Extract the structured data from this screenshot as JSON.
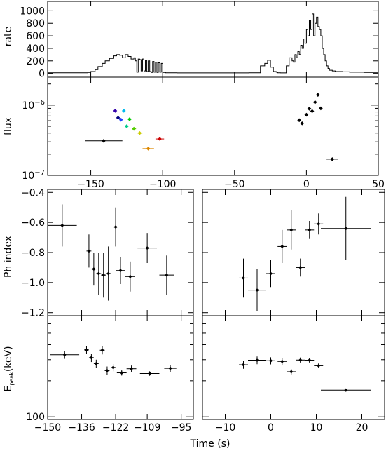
{
  "xlabel": "Time (s)",
  "chart_data": [
    {
      "panel": "rate",
      "type": "line",
      "ylabel": "rate",
      "xlim": [
        -180,
        50
      ],
      "ylim": [
        -60,
        1150
      ],
      "yticks": [
        0,
        200,
        400,
        600,
        800,
        1000
      ],
      "series_x": [
        -180,
        -160,
        -152,
        -150,
        -147,
        -145,
        -142,
        -140,
        -137,
        -134,
        -132,
        -130,
        -128,
        -126,
        -124,
        -122,
        -120,
        -119,
        -118,
        -117,
        -116,
        -115,
        -114,
        -113,
        -112,
        -111,
        -110,
        -109,
        -108,
        -107,
        -106,
        -105,
        -104,
        -103,
        -102,
        -101,
        -100,
        -98,
        -90,
        -60,
        -40,
        -32,
        -29,
        -27,
        -25,
        -23,
        -21,
        -20,
        -18,
        -16,
        -14,
        -12,
        -10,
        -9,
        -8,
        -7,
        -6,
        -5,
        -4,
        -3,
        -2,
        -1,
        0,
        1,
        2,
        3,
        4,
        5,
        6,
        7,
        8,
        9,
        10,
        11,
        12,
        13,
        14,
        15,
        16,
        18,
        20,
        25,
        30,
        40,
        50
      ],
      "series_y": [
        10,
        10,
        15,
        30,
        60,
        110,
        160,
        200,
        240,
        280,
        300,
        290,
        250,
        300,
        270,
        230,
        250,
        200,
        20,
        230,
        220,
        40,
        230,
        40,
        210,
        30,
        200,
        30,
        15,
        190,
        20,
        180,
        15,
        170,
        20,
        160,
        15,
        10,
        8,
        8,
        10,
        120,
        160,
        210,
        100,
        30,
        20,
        10,
        8,
        8,
        120,
        250,
        200,
        180,
        300,
        250,
        350,
        300,
        450,
        400,
        550,
        480,
        700,
        600,
        850,
        700,
        950,
        600,
        800,
        900,
        750,
        700,
        600,
        400,
        300,
        200,
        120,
        80,
        50,
        40,
        30,
        25,
        20,
        15,
        12
      ]
    },
    {
      "panel": "flux",
      "type": "scatter",
      "ylabel": "flux",
      "scale": "log",
      "xlim": [
        -180,
        50
      ],
      "ylim": [
        1e-07,
        2.5e-06
      ],
      "ytick_labels": [
        "10−6",
        "10−7"
      ],
      "xticks": [
        -150,
        -100,
        -50,
        0,
        50
      ],
      "points": [
        {
          "x": -141,
          "y": 3.1e-07,
          "xerr": 13,
          "color": "#000000"
        },
        {
          "x": -133,
          "y": 8.3e-07,
          "xerr": 0.5,
          "color": "#3300aa"
        },
        {
          "x": -131,
          "y": 6.6e-07,
          "xerr": 0.5,
          "color": "#000080"
        },
        {
          "x": -129,
          "y": 6.2e-07,
          "xerr": 0.5,
          "color": "#2040ff"
        },
        {
          "x": -127,
          "y": 8.3e-07,
          "xerr": 0.5,
          "color": "#00bbee"
        },
        {
          "x": -125,
          "y": 5e-07,
          "xerr": 0.5,
          "color": "#00cc88"
        },
        {
          "x": -123,
          "y": 6.3e-07,
          "xerr": 0.5,
          "color": "#00cc00"
        },
        {
          "x": -120,
          "y": 4.6e-07,
          "xerr": 1.5,
          "color": "#55cc00"
        },
        {
          "x": -116,
          "y": 4e-07,
          "xerr": 2,
          "color": "#cccc00"
        },
        {
          "x": -110,
          "y": 2.4e-07,
          "xerr": 4,
          "color": "#dd8800"
        },
        {
          "x": -102,
          "y": 3.3e-07,
          "xerr": 3,
          "color": "#cc0000"
        },
        {
          "x": -5,
          "y": 6.1e-07,
          "xerr": 0.5,
          "color": "#000000"
        },
        {
          "x": -3,
          "y": 5.5e-07,
          "xerr": 1,
          "color": "#000000"
        },
        {
          "x": 0,
          "y": 7.3e-07,
          "xerr": 0.5,
          "color": "#000000"
        },
        {
          "x": 2,
          "y": 8.9e-07,
          "xerr": 0.5,
          "color": "#000000"
        },
        {
          "x": 4,
          "y": 8.2e-07,
          "xerr": 0.5,
          "color": "#000000"
        },
        {
          "x": 6,
          "y": 1.1e-06,
          "xerr": 0.5,
          "color": "#000000"
        },
        {
          "x": 8,
          "y": 1.4e-06,
          "xerr": 0.5,
          "color": "#000000"
        },
        {
          "x": 10,
          "y": 9e-07,
          "xerr": 0.5,
          "color": "#000000"
        },
        {
          "x": 18,
          "y": 1.7e-07,
          "xerr": 4,
          "color": "#000000"
        }
      ]
    },
    {
      "panel": "ph-index-left",
      "type": "scatter",
      "ylabel": "Ph index",
      "xlim": [
        -150,
        -90
      ],
      "ylim": [
        -1.22,
        -0.38
      ],
      "yticks": [
        -0.4,
        -0.6,
        -0.8,
        -1.0,
        -1.2
      ],
      "points": [
        {
          "x": -144,
          "xerr": 6,
          "y": -0.62,
          "yerr": 0.14
        },
        {
          "x": -133,
          "xerr": 1,
          "y": -0.79,
          "yerr": 0.11
        },
        {
          "x": -131,
          "xerr": 1,
          "y": -0.91,
          "yerr": 0.11
        },
        {
          "x": -129,
          "xerr": 1,
          "y": -0.94,
          "yerr": 0.14
        },
        {
          "x": -127,
          "xerr": 1,
          "y": -0.95,
          "yerr": 0.15
        },
        {
          "x": -125,
          "xerr": 1,
          "y": -0.94,
          "yerr": 0.18
        },
        {
          "x": -122,
          "xerr": 1,
          "y": -0.63,
          "yerr": 0.13
        },
        {
          "x": -120,
          "xerr": 2,
          "y": -0.92,
          "yerr": 0.09
        },
        {
          "x": -116,
          "xerr": 2,
          "y": -0.96,
          "yerr": 0.1
        },
        {
          "x": -109,
          "xerr": 4,
          "y": -0.77,
          "yerr": 0.1
        },
        {
          "x": -101,
          "xerr": 3,
          "y": -0.95,
          "yerr": 0.13
        }
      ]
    },
    {
      "panel": "ph-index-right",
      "type": "scatter",
      "xlim": [
        -15,
        25
      ],
      "ylim": [
        -1.22,
        -0.38
      ],
      "points": [
        {
          "x": -6,
          "xerr": 1,
          "y": -0.97,
          "yerr": 0.13
        },
        {
          "x": -3,
          "xerr": 2,
          "y": -1.05,
          "yerr": 0.14
        },
        {
          "x": 0,
          "xerr": 1,
          "y": -0.94,
          "yerr": 0.09
        },
        {
          "x": 2.5,
          "xerr": 1,
          "y": -0.76,
          "yerr": 0.11
        },
        {
          "x": 4.5,
          "xerr": 1,
          "y": -0.65,
          "yerr": 0.13
        },
        {
          "x": 6.5,
          "xerr": 1,
          "y": -0.9,
          "yerr": 0.06
        },
        {
          "x": 8.5,
          "xerr": 1,
          "y": -0.65,
          "yerr": 0.06
        },
        {
          "x": 10.5,
          "xerr": 1,
          "y": -0.61,
          "yerr": 0.07
        },
        {
          "x": 16.5,
          "xerr": 5.5,
          "y": -0.64,
          "yerr": 0.21
        }
      ]
    },
    {
      "panel": "epeak-left",
      "type": "scatter",
      "ylabel_main": "E",
      "ylabel_sub": "peak",
      "ylabel_tail": "(keV)",
      "scale": "log",
      "xlim": [
        -150,
        -90
      ],
      "ylim": [
        95,
        700
      ],
      "ytick_label": "100",
      "xtick_labels": [
        "−150",
        "−136",
        "−122",
        "−109",
        "−95"
      ],
      "xticks": [
        -150,
        -136,
        -122,
        -109,
        -95
      ],
      "points": [
        {
          "x": -143,
          "xerr": 6,
          "y": 330,
          "yerr": 25
        },
        {
          "x": -134,
          "xerr": 1,
          "y": 362,
          "yerr": 28
        },
        {
          "x": -132,
          "xerr": 1,
          "y": 312,
          "yerr": 25
        },
        {
          "x": -130,
          "xerr": 1,
          "y": 278,
          "yerr": 22
        },
        {
          "x": -127.5,
          "xerr": 1,
          "y": 360,
          "yerr": 28
        },
        {
          "x": -125.5,
          "xerr": 1,
          "y": 243,
          "yerr": 20
        },
        {
          "x": -123,
          "xerr": 1,
          "y": 258,
          "yerr": 18
        },
        {
          "x": -119.5,
          "xerr": 2,
          "y": 233,
          "yerr": 12
        },
        {
          "x": -115.5,
          "xerr": 2,
          "y": 252,
          "yerr": 16
        },
        {
          "x": -108,
          "xerr": 4,
          "y": 230,
          "yerr": 10
        },
        {
          "x": -99.5,
          "xerr": 2.5,
          "y": 254,
          "yerr": 18
        }
      ]
    },
    {
      "panel": "epeak-right",
      "type": "scatter",
      "scale": "log",
      "xlim": [
        -15,
        25
      ],
      "ylim": [
        95,
        700
      ],
      "xticks": [
        -10,
        0,
        10,
        20
      ],
      "xtick_labels": [
        "−10",
        "0",
        "10",
        "20"
      ],
      "points": [
        {
          "x": -6,
          "xerr": 1,
          "y": 272,
          "yerr": 20
        },
        {
          "x": -3,
          "xerr": 2,
          "y": 297,
          "yerr": 22
        },
        {
          "x": 0,
          "xerr": 1,
          "y": 294,
          "yerr": 20
        },
        {
          "x": 2.5,
          "xerr": 1,
          "y": 290,
          "yerr": 18
        },
        {
          "x": 4.5,
          "xerr": 1,
          "y": 238,
          "yerr": 12
        },
        {
          "x": 6.5,
          "xerr": 1,
          "y": 298,
          "yerr": 15
        },
        {
          "x": 8.5,
          "xerr": 1,
          "y": 297,
          "yerr": 14
        },
        {
          "x": 10.5,
          "xerr": 1,
          "y": 267,
          "yerr": 12
        },
        {
          "x": 16.5,
          "xerr": 5.5,
          "y": 167,
          "yerr": 5
        }
      ]
    }
  ]
}
